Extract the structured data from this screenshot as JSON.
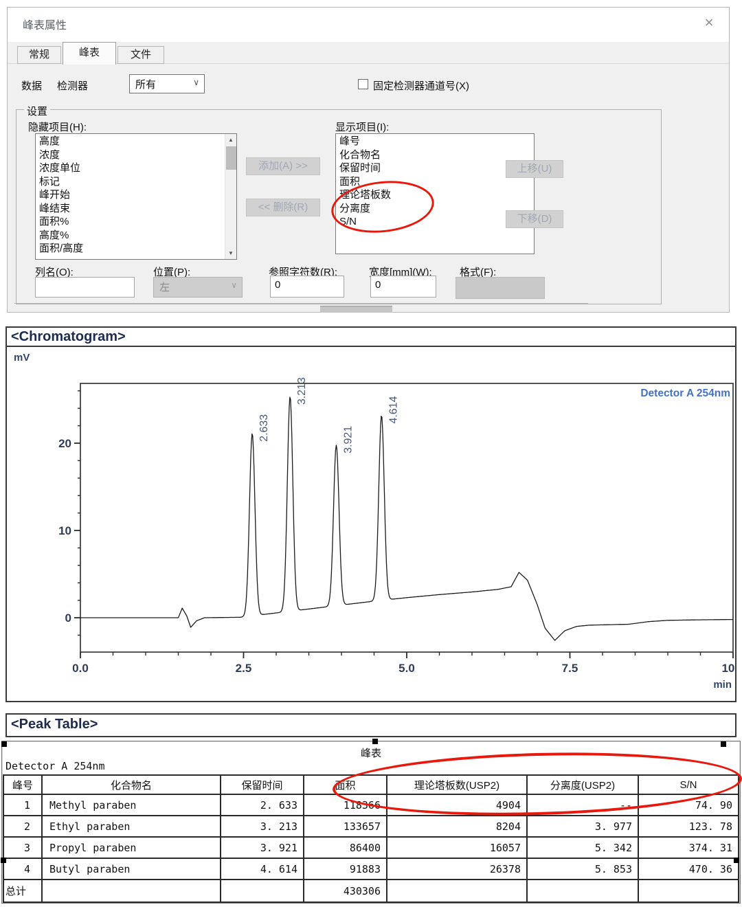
{
  "dialog": {
    "title": "峰表属性",
    "close_glyph": "×",
    "tabs": [
      {
        "label": "常规"
      },
      {
        "label": "峰表"
      },
      {
        "label": "文件"
      }
    ],
    "data_label": "数据",
    "detector_label": "检测器",
    "detector_combo_value": "所有",
    "fixed_channel_checkbox_label": "固定检测器通道号(X)",
    "settings_legend": "设置",
    "hidden_list_label": "隐藏项目(H):",
    "hidden_items": [
      "高度",
      "浓度",
      "浓度单位",
      "标记",
      "峰开始",
      "峰结束",
      "面积%",
      "高度%",
      "面积/高度"
    ],
    "shown_list_label": "显示项目(I):",
    "shown_items": [
      "峰号",
      "化合物名",
      "保留时间",
      "面积",
      "理论塔板数",
      "分离度",
      "S/N"
    ],
    "add_button": "添加(A) >>",
    "remove_button": "<< 删除(R)",
    "up_button": "上移(U)",
    "down_button": "下移(D)",
    "column_name": {
      "label": "列名(O):",
      "value": ""
    },
    "position": {
      "label": "位置(P):",
      "value": "左"
    },
    "ref_chars": {
      "label": "参照字符数(R):",
      "value": "0"
    },
    "width_mm": {
      "label": "宽度[mm](W):",
      "value": "0"
    },
    "format": {
      "label": "格式(F):",
      "value": ""
    }
  },
  "chromatogram": {
    "header": "<Chromatogram>"
  },
  "chart_data": {
    "type": "line",
    "title": "<Chromatogram>",
    "ylabel": "mV",
    "xlabel": "min",
    "xlim": [
      0,
      10
    ],
    "ylim": [
      -4,
      26.9
    ],
    "x_major_ticks": [
      0,
      2.5,
      5,
      7.5,
      10
    ],
    "x_tick_labels": [
      "0.0",
      "2.5",
      "5.0",
      "7.5",
      "10.0"
    ],
    "x_minor_step": 0.5,
    "y_major_ticks": [
      0,
      10,
      20
    ],
    "y_tick_labels": [
      "0",
      "10",
      "20"
    ],
    "y_minor_step": 2,
    "legend": "Detector A 254nm",
    "legend_position": "top-right",
    "grid": false,
    "peaks": [
      {
        "rt": 2.633,
        "height_mv": 20.9,
        "label": "2.633"
      },
      {
        "rt": 3.213,
        "height_mv": 24.6,
        "label": "3.213"
      },
      {
        "rt": 3.921,
        "height_mv": 18.4,
        "label": "3.921"
      },
      {
        "rt": 4.614,
        "height_mv": 21.2,
        "label": "4.614"
      }
    ],
    "peak_sigma_min": 0.042,
    "baseline_points": [
      [
        0,
        0
      ],
      [
        1.5,
        0
      ],
      [
        1.56,
        1.1
      ],
      [
        1.63,
        0.2
      ],
      [
        1.69,
        -1.1
      ],
      [
        1.78,
        -0.35
      ],
      [
        1.9,
        0
      ],
      [
        2.45,
        0.05
      ],
      [
        3.0,
        0.55
      ],
      [
        3.5,
        1.0
      ],
      [
        4.0,
        1.45
      ],
      [
        4.5,
        1.9
      ],
      [
        5.0,
        2.3
      ],
      [
        5.5,
        2.65
      ],
      [
        6.0,
        2.95
      ],
      [
        6.4,
        3.25
      ],
      [
        6.6,
        3.55
      ],
      [
        6.72,
        5.2
      ],
      [
        6.85,
        4.3
      ],
      [
        7.0,
        1.5
      ],
      [
        7.12,
        -1.2
      ],
      [
        7.27,
        -2.6
      ],
      [
        7.42,
        -1.5
      ],
      [
        7.6,
        -1.0
      ],
      [
        7.8,
        -0.85
      ],
      [
        8.4,
        -0.75
      ],
      [
        8.7,
        -0.45
      ],
      [
        9.0,
        -0.3
      ],
      [
        9.4,
        -0.25
      ],
      [
        10,
        -0.2
      ]
    ]
  },
  "peak_table": {
    "header": "<Peak Table>",
    "table_title": "峰表",
    "detector_line": "Detector A 254nm",
    "columns": [
      "峰号",
      "化合物名",
      "保留时间",
      "面积",
      "理论塔板数(USP2)",
      "分离度(USP2)",
      "S/N"
    ],
    "rows": [
      [
        "1",
        "Methyl paraben",
        "2. 633",
        "118366",
        "4904",
        "--",
        "74. 90"
      ],
      [
        "2",
        "Ethyl paraben",
        "3. 213",
        "133657",
        "8204",
        "3. 977",
        "123. 78"
      ],
      [
        "3",
        "Propyl paraben",
        "3. 921",
        "86400",
        "16057",
        "5. 342",
        "374. 31"
      ],
      [
        "4",
        "Butyl paraben",
        "4. 614",
        "91883",
        "26378",
        "5. 853",
        "470. 36"
      ],
      [
        "总计",
        "",
        "",
        "430306",
        "",
        "",
        ""
      ]
    ]
  },
  "annotation_color": "#e8190c"
}
